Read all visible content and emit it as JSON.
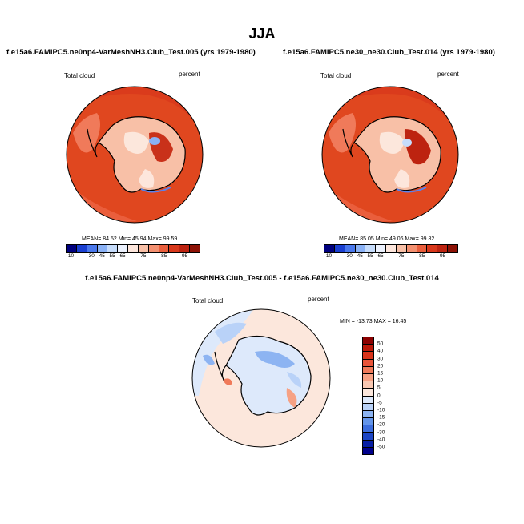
{
  "title": "JJA",
  "panels": {
    "left": {
      "title": "f.e15a6.FAMIPC5.ne0np4-VarMeshNH3.Club_Test.005 (yrs 1979-1980)",
      "variable": "Total cloud",
      "units": "percent",
      "stats": "MEAN=  84.52  Min=  45.94  Max=  99.59"
    },
    "right": {
      "title": "f.e15a6.FAMIPC5.ne30_ne30.Club_Test.014 (yrs 1979-1980)",
      "variable": "Total cloud",
      "units": "percent",
      "stats": "MEAN=  85.05  Min=  49.06  Max=  99.82"
    },
    "diff": {
      "title": "f.e15a6.FAMIPC5.ne0np4-VarMeshNH3.Club_Test.005 - f.e15a6.FAMIPC5.ne30_ne30.Club_Test.014",
      "variable": "Total cloud",
      "units": "percent",
      "stats": "MIN = -13.73 MAX =  16.45"
    }
  },
  "colorbars": {
    "abs_labels": [
      "10",
      "30",
      "45",
      "55",
      "65",
      "75",
      "85",
      "95"
    ],
    "abs_colors": [
      "#00007e",
      "#1a3fd0",
      "#4a78ec",
      "#8ab1f5",
      "#c6dcfb",
      "#ecf1fd",
      "#fde6dc",
      "#f8c0a7",
      "#f39070",
      "#ea5e3c",
      "#d8381b",
      "#bd2310",
      "#8d1206"
    ],
    "diff_labels": [
      "50",
      "40",
      "30",
      "20",
      "15",
      "10",
      "5",
      "0",
      "-5",
      "-10",
      "-15",
      "-20",
      "-30",
      "-40",
      "-50"
    ],
    "diff_colors": [
      "#8b0000",
      "#bb1708",
      "#d9331a",
      "#e9553a",
      "#f07a5a",
      "#f6a184",
      "#f9c8b2",
      "#fce7dc",
      "#dde9fb",
      "#b9d2f8",
      "#8db4f2",
      "#6495ea",
      "#3c6ddd",
      "#1c45c4",
      "#071ea4",
      "#00008b"
    ]
  }
}
